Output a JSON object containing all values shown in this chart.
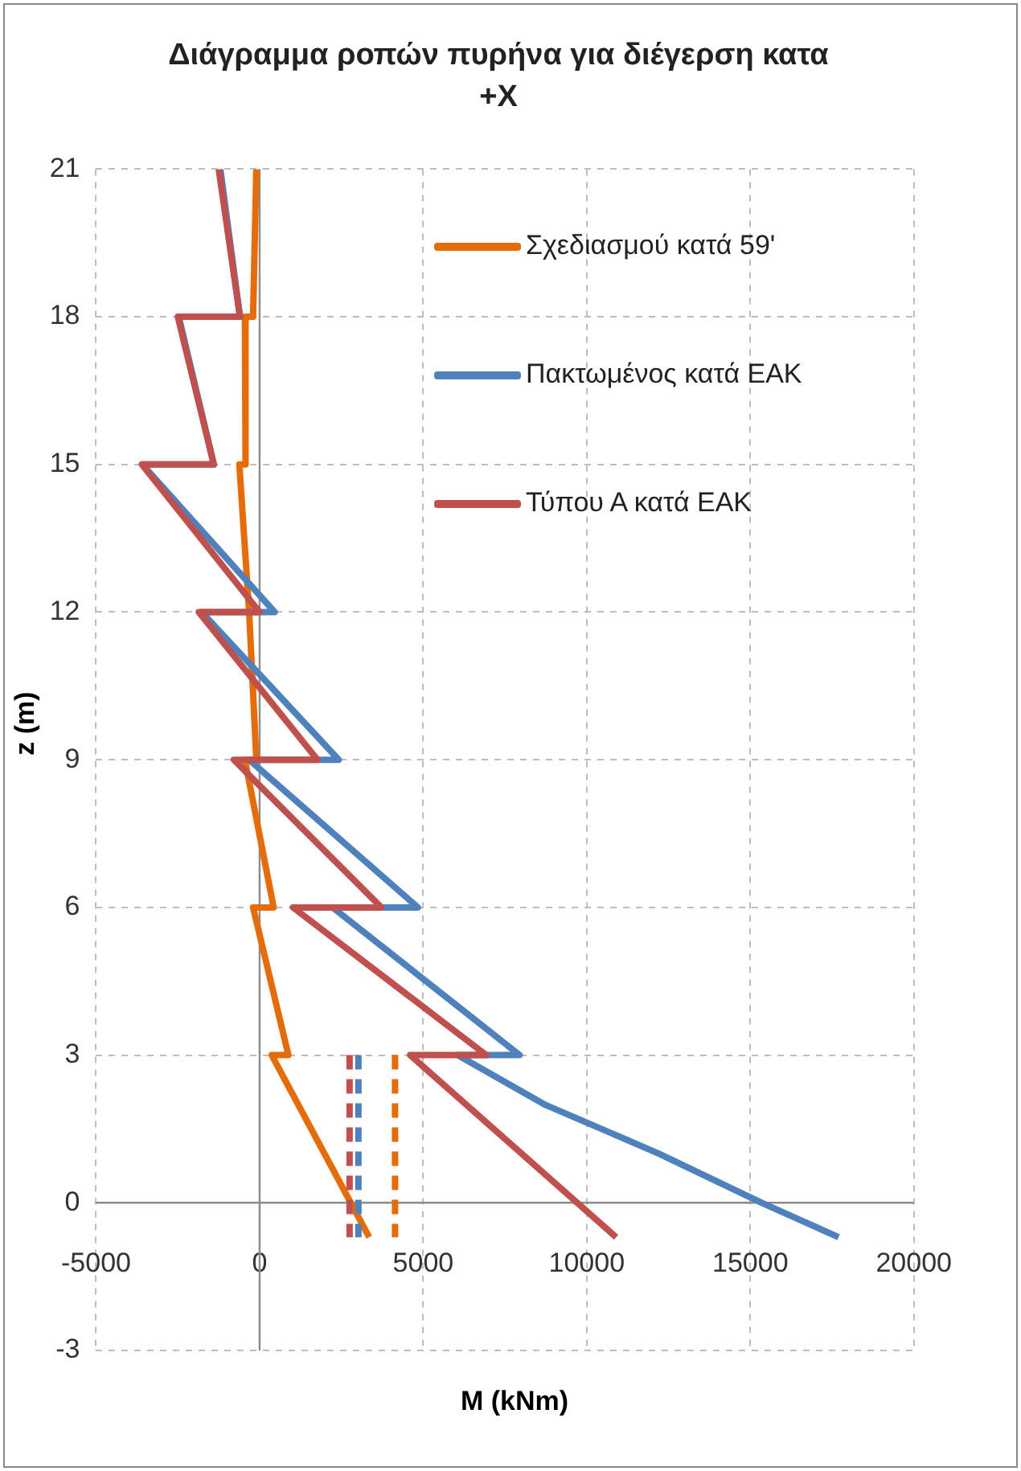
{
  "chart_data": {
    "type": "line",
    "title": "Διάγραμμα ροπών πυρήνα για διέγερση κατα +X",
    "xlabel": "M (kNm)",
    "ylabel": "z (m)",
    "xlim": [
      -5000,
      20000
    ],
    "xticks": [
      -5000,
      0,
      5000,
      10000,
      15000,
      20000
    ],
    "ylim": [
      -3,
      21
    ],
    "yticks": [
      -3,
      0,
      3,
      6,
      9,
      12,
      15,
      18,
      21
    ],
    "grid": true,
    "legend": "top right",
    "marker": "none",
    "line_style": "solid",
    "series": [
      {
        "name": "Σχεδιασμού κατά 59'",
        "color": "#e46c0a",
        "x": [
          -100,
          -200,
          -450,
          -430,
          -620,
          -320,
          -100,
          -450,
          430,
          -200,
          880,
          370,
          3350
        ],
        "values": [
          21,
          18,
          18,
          15,
          15,
          12,
          9,
          9,
          6,
          6,
          3,
          3,
          -0.7
        ]
      },
      {
        "name": "Πακτωμένος κατά ΕΑΚ",
        "color": "#4f81bd",
        "x": [
          -1200,
          -600,
          -2470,
          -1400,
          -3580,
          460,
          -1770,
          2420,
          -320,
          4840,
          2230,
          7950,
          6050,
          8700,
          12200,
          15350,
          17700
        ],
        "values": [
          21,
          18,
          18,
          15,
          15,
          12,
          12,
          9,
          9,
          6,
          6,
          3,
          3,
          2,
          1,
          0,
          -0.7
        ]
      },
      {
        "name": "Τύπου Α κατά ΕΑΚ",
        "color": "#c0504d",
        "x": [
          -1250,
          -600,
          -2500,
          -1400,
          -3600,
          0,
          -1860,
          1770,
          -790,
          3720,
          1020,
          6930,
          4600,
          10900
        ],
        "values": [
          21,
          18,
          18,
          15,
          15,
          12,
          12,
          9,
          9,
          6,
          6,
          3,
          3,
          -0.7
        ]
      },
      {
        "color": "#e46c0a",
        "line_style": "dashed",
        "x": [
          4140,
          4140
        ],
        "values": [
          3,
          -0.7
        ]
      },
      {
        "color": "#4f81bd",
        "line_style": "dashed",
        "x": [
          3020,
          3020
        ],
        "values": [
          3,
          -0.7
        ]
      },
      {
        "color": "#c0504d",
        "line_style": "dashed",
        "x": [
          2750,
          2750
        ],
        "values": [
          3,
          -0.7
        ]
      }
    ]
  }
}
